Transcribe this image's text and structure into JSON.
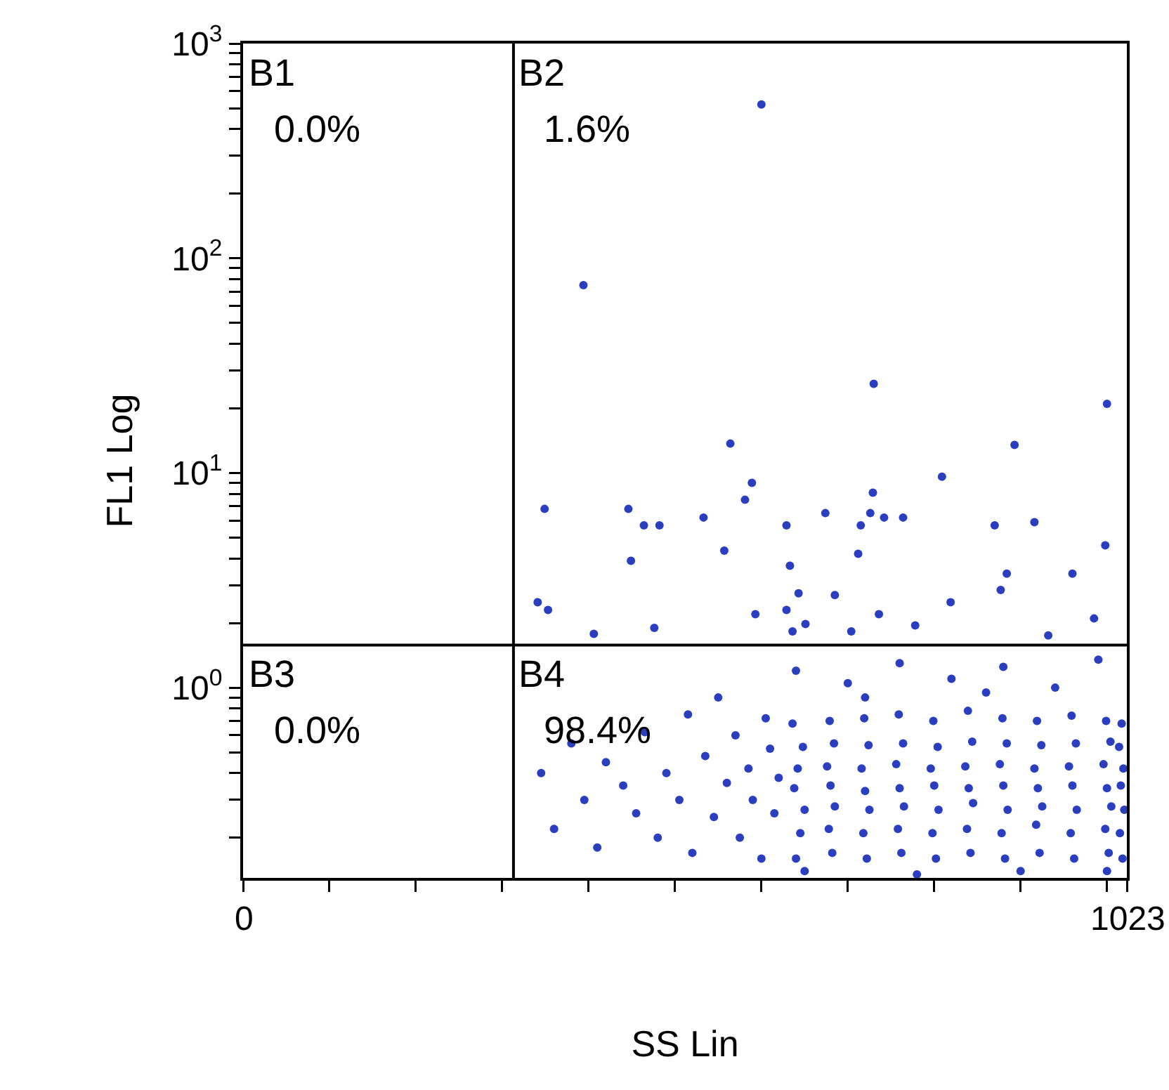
{
  "chart_data": {
    "type": "scatter",
    "xlabel": "SS Lin",
    "ylabel": "FL1 Log",
    "x": [
      600,
      394,
      730,
      1000,
      564,
      893,
      809,
      589,
      581,
      729,
      349,
      446,
      674,
      726,
      464,
      482,
      533,
      629,
      715,
      742,
      764,
      870,
      916,
      998,
      557,
      712,
      449,
      633,
      884,
      960,
      877,
      643,
      685,
      341,
      353,
      819,
      593,
      629,
      736,
      985,
      406,
      476,
      636,
      651,
      704,
      778,
      932,
      345,
      360,
      380,
      395,
      410,
      420,
      440,
      455,
      465,
      480,
      490,
      505,
      515,
      520,
      535,
      545,
      550,
      560,
      570,
      575,
      585,
      590,
      600,
      605,
      610,
      615,
      620,
      640,
      645,
      650,
      638,
      642,
      648,
      636,
      682,
      678,
      685,
      680,
      676,
      684,
      679,
      722,
      718,
      725,
      720,
      716,
      724,
      719,
      762,
      758,
      765,
      760,
      756,
      764,
      759,
      802,
      798,
      805,
      800,
      796,
      804,
      799,
      842,
      838,
      845,
      840,
      836,
      844,
      839,
      882,
      878,
      885,
      880,
      876,
      884,
      879,
      922,
      918,
      925,
      920,
      916,
      924,
      919,
      962,
      958,
      965,
      960,
      956,
      964,
      959,
      1002,
      998,
      1005,
      1000,
      996,
      1004,
      999,
      1018,
      1015,
      1020,
      1016,
      1019,
      1014,
      1017,
      640,
      700,
      760,
      820,
      880,
      940,
      990,
      860,
      720,
      650,
      780,
      900,
      1000
    ],
    "values": [
      520,
      75,
      26,
      21,
      13.7,
      13.5,
      9.6,
      9.0,
      7.5,
      8.1,
      6.8,
      6.8,
      6.5,
      6.5,
      5.7,
      5.7,
      6.2,
      5.7,
      5.7,
      6.2,
      6.2,
      5.7,
      5.9,
      4.6,
      4.35,
      4.2,
      3.9,
      3.7,
      3.4,
      3.4,
      2.85,
      2.75,
      2.7,
      2.5,
      2.3,
      2.5,
      2.2,
      2.3,
      2.2,
      2.1,
      1.78,
      1.9,
      1.83,
      1.98,
      1.83,
      1.95,
      1.75,
      0.4,
      0.22,
      0.55,
      0.3,
      0.18,
      0.45,
      0.35,
      0.26,
      0.62,
      0.2,
      0.4,
      0.3,
      0.75,
      0.17,
      0.48,
      0.25,
      0.9,
      0.36,
      0.6,
      0.2,
      0.42,
      0.3,
      0.16,
      0.72,
      0.52,
      0.26,
      0.38,
      0.16,
      0.21,
      0.27,
      0.34,
      0.42,
      0.53,
      0.68,
      0.17,
      0.22,
      0.28,
      0.35,
      0.43,
      0.55,
      0.7,
      0.16,
      0.21,
      0.27,
      0.33,
      0.42,
      0.54,
      0.72,
      0.17,
      0.22,
      0.28,
      0.34,
      0.44,
      0.55,
      0.75,
      0.16,
      0.21,
      0.27,
      0.35,
      0.42,
      0.53,
      0.7,
      0.17,
      0.22,
      0.29,
      0.34,
      0.43,
      0.56,
      0.78,
      0.16,
      0.21,
      0.27,
      0.35,
      0.44,
      0.55,
      0.72,
      0.17,
      0.23,
      0.28,
      0.34,
      0.42,
      0.54,
      0.7,
      0.16,
      0.21,
      0.27,
      0.35,
      0.43,
      0.55,
      0.74,
      0.17,
      0.22,
      0.28,
      0.34,
      0.44,
      0.56,
      0.7,
      0.16,
      0.21,
      0.27,
      0.35,
      0.42,
      0.53,
      0.68,
      1.2,
      1.05,
      1.3,
      1.1,
      1.25,
      1.0,
      1.35,
      0.95,
      0.9,
      0.14,
      0.135,
      0.14,
      0.14
    ],
    "color": "#2a3fc0",
    "marker": "circle",
    "log": "y",
    "grid": false,
    "xlim": [
      0,
      1023
    ],
    "xticks": [
      0,
      {
        "value": 100,
        "label": null
      },
      {
        "value": 200,
        "label": null
      },
      {
        "value": 300,
        "label": null
      },
      {
        "value": 400,
        "label": null
      },
      {
        "value": 500,
        "label": null
      },
      {
        "value": 600,
        "label": null
      },
      {
        "value": 700,
        "label": null
      },
      {
        "value": 800,
        "label": null
      },
      {
        "value": 900,
        "label": null
      },
      {
        "value": 1000,
        "label": null
      },
      1023
    ],
    "ylim": [
      0.13,
      1000
    ],
    "yticks": [
      {
        "value": 0.2,
        "label": null
      },
      {
        "value": 0.3,
        "label": null
      },
      {
        "value": 0.4,
        "label": null
      },
      {
        "value": 0.5,
        "label": null
      },
      {
        "value": 0.6,
        "label": null
      },
      {
        "value": 0.7,
        "label": null
      },
      {
        "value": 0.8,
        "label": null
      },
      {
        "value": 0.9,
        "label": null
      },
      {
        "value": 1,
        "label": "10$^{0}$"
      },
      {
        "value": 2,
        "label": null
      },
      {
        "value": 3,
        "label": null
      },
      {
        "value": 4,
        "label": null
      },
      {
        "value": 5,
        "label": null
      },
      {
        "value": 6,
        "label": null
      },
      {
        "value": 7,
        "label": null
      },
      {
        "value": 8,
        "label": null
      },
      {
        "value": 9,
        "label": null
      },
      {
        "value": 10,
        "label": "10$^{1}$"
      },
      {
        "value": 20,
        "label": null
      },
      {
        "value": 30,
        "label": null
      },
      {
        "value": 40,
        "label": null
      },
      {
        "value": 50,
        "label": null
      },
      {
        "value": 60,
        "label": null
      },
      {
        "value": 70,
        "label": null
      },
      {
        "value": 80,
        "label": null
      },
      {
        "value": 90,
        "label": null
      },
      {
        "value": 100,
        "label": "10$^{2}$"
      },
      {
        "value": 200,
        "label": null
      },
      {
        "value": 300,
        "label": null
      },
      {
        "value": 400,
        "label": null
      },
      {
        "value": 500,
        "label": null
      },
      {
        "value": 600,
        "label": null
      },
      {
        "value": 700,
        "label": null
      },
      {
        "value": 800,
        "label": null
      },
      {
        "value": 900,
        "label": null
      },
      {
        "value": 1000,
        "label": "10$^{3}$"
      }
    ],
    "ref_lines": [
      {
        "axis": "x",
        "value": 313,
        "color": "#000000"
      },
      {
        "axis": "y",
        "value": 1.58,
        "color": "#000000"
      }
    ],
    "annotations": [
      "B1",
      "0.0%",
      "B2",
      "1.6%",
      "B3",
      "0.0%",
      "B4",
      "98.4%"
    ]
  }
}
